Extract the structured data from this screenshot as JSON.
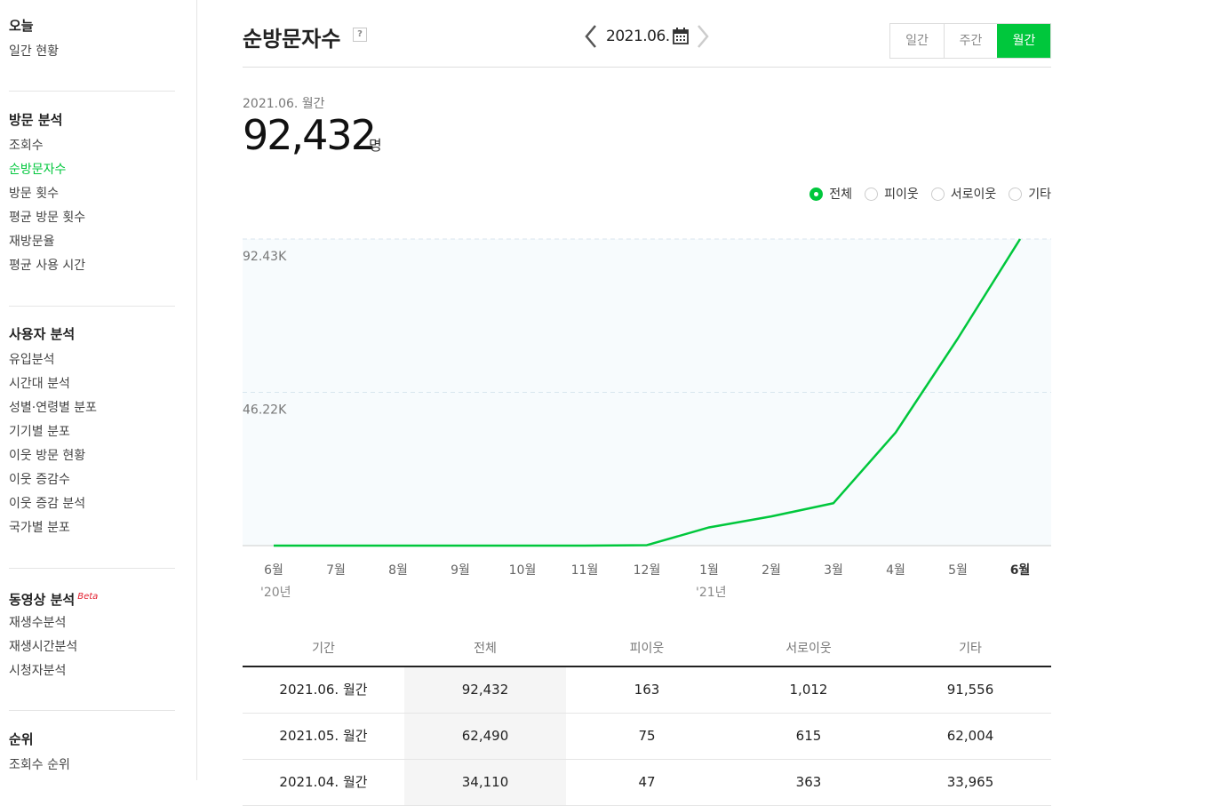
{
  "sidebar": {
    "sections": [
      {
        "title": "오늘",
        "items": [
          "일간 현황"
        ]
      },
      {
        "title": "방문 분석",
        "items": [
          "조회수",
          "순방문자수",
          "방문 횟수",
          "평균 방문 횟수",
          "재방문율",
          "평균 사용 시간"
        ]
      },
      {
        "title": "사용자 분석",
        "items": [
          "유입분석",
          "시간대 분석",
          "성별·연령별 분포",
          "기기별 분포",
          "이웃 방문 현황",
          "이웃 증감수",
          "이웃 증감 분석",
          "국가별 분포"
        ]
      },
      {
        "title": "동영상 분석",
        "beta": "Beta",
        "items": [
          "재생수분석",
          "재생시간분석",
          "시청자분석"
        ]
      },
      {
        "title": "순위",
        "items": [
          "조회수 순위"
        ]
      }
    ],
    "active_item": "순방문자수"
  },
  "header": {
    "title": "순방문자수",
    "help": "?",
    "date": "2021.06.",
    "tabs": [
      "일간",
      "주간",
      "월간"
    ],
    "active_tab": "월간"
  },
  "summary": {
    "label": "2021.06. 월간",
    "value": "92,432",
    "unit": "명"
  },
  "legend": {
    "options": [
      "전체",
      "피이웃",
      "서로이웃",
      "기타"
    ],
    "selected": "전체"
  },
  "chart_data": {
    "type": "line",
    "categories": [
      "6월",
      "7월",
      "8월",
      "9월",
      "10월",
      "11월",
      "12월",
      "1월",
      "2월",
      "3월",
      "4월",
      "5월",
      "6월"
    ],
    "year_labels": [
      "'20년",
      "",
      "",
      "",
      "",
      "",
      "",
      "'21년",
      "",
      "",
      "",
      "",
      ""
    ],
    "series": [
      {
        "values": [
          0,
          0,
          0,
          0,
          0,
          0,
          150,
          5500,
          8800,
          12800,
          34110,
          62490,
          92432
        ]
      }
    ],
    "y_ticks": [
      "46.22K",
      "92.43K"
    ],
    "ylim": [
      0,
      92432
    ],
    "grid": true,
    "line_color": "#00c73c",
    "highlight_category_index": 12
  },
  "table": {
    "headers": [
      "기간",
      "전체",
      "피이웃",
      "서로이웃",
      "기타"
    ],
    "rows": [
      [
        "2021.06. 월간",
        "92,432",
        "163",
        "1,012",
        "91,556"
      ],
      [
        "2021.05. 월간",
        "62,490",
        "75",
        "615",
        "62,004"
      ],
      [
        "2021.04. 월간",
        "34,110",
        "47",
        "363",
        "33,965"
      ]
    ]
  },
  "colors": {
    "accent": "#00c73c"
  }
}
